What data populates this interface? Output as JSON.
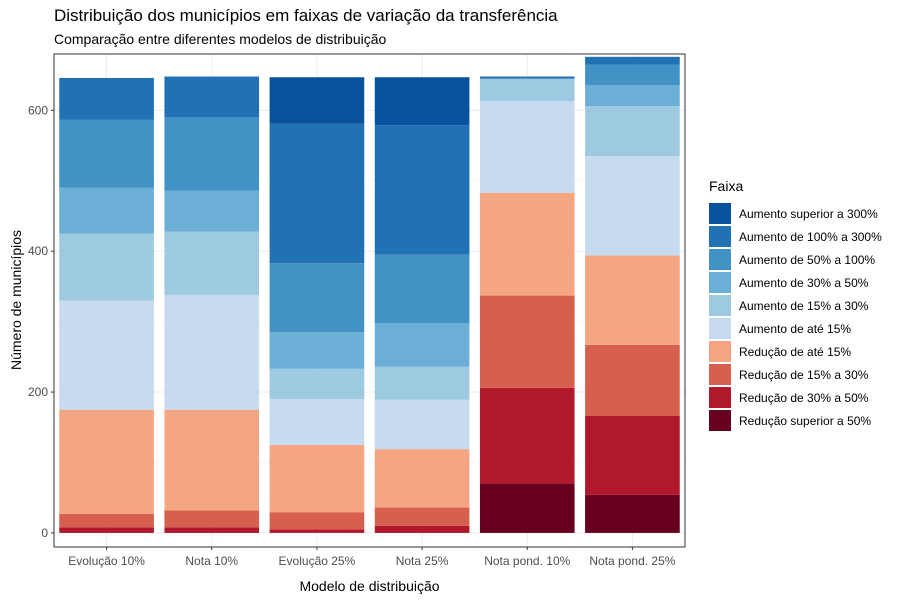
{
  "chart_data": {
    "type": "bar",
    "stacked": true,
    "title": "Distribuição dos municípios em faixas de variação da transferência",
    "subtitle": "Comparação entre diferentes modelos de distribuição",
    "xlabel": "Modelo de distribuição",
    "ylabel": "Número de municípios",
    "ylim": [
      0,
      680
    ],
    "yticks": [
      0,
      200,
      400,
      600
    ],
    "grid": true,
    "legend_title": "Faixa",
    "legend_position": "right",
    "categories": [
      "Evolução 10%",
      "Nota 10%",
      "Evolução 25%",
      "Nota 25%",
      "Nota pond. 10%",
      "Nota pond. 25%"
    ],
    "series": [
      {
        "name": "Redução superior a 50%",
        "color": "#67001F",
        "values": [
          0,
          0,
          0,
          0,
          70,
          54
        ]
      },
      {
        "name": "Redução de 30% a 50%",
        "color": "#B2182B",
        "values": [
          8,
          8,
          5,
          10,
          136,
          112
        ]
      },
      {
        "name": "Redução de 15% a 30%",
        "color": "#D6604D",
        "values": [
          19,
          24,
          24,
          26,
          131,
          101
        ]
      },
      {
        "name": "Redução de até 15%",
        "color": "#F4A582",
        "values": [
          148,
          143,
          96,
          83,
          146,
          127
        ]
      },
      {
        "name": "Aumento de até 15%",
        "color": "#C6DBEF",
        "values": [
          155,
          163,
          65,
          70,
          130,
          141
        ]
      },
      {
        "name": "Aumento de 15% a 30%",
        "color": "#9ECAE1",
        "values": [
          95,
          90,
          43,
          47,
          32,
          71
        ]
      },
      {
        "name": "Aumento de 30% a 50%",
        "color": "#6BAED6",
        "values": [
          65,
          58,
          52,
          62,
          0,
          30
        ]
      },
      {
        "name": "Aumento de 50% a 100%",
        "color": "#4292C6",
        "values": [
          97,
          104,
          98,
          97,
          0,
          29
        ]
      },
      {
        "name": "Aumento de 100% a 300%",
        "color": "#2171B5",
        "values": [
          59,
          58,
          198,
          184,
          3,
          11
        ]
      },
      {
        "name": "Aumento superior a 300%",
        "color": "#08519C",
        "values": [
          0,
          0,
          66,
          68,
          0,
          0
        ]
      }
    ]
  }
}
